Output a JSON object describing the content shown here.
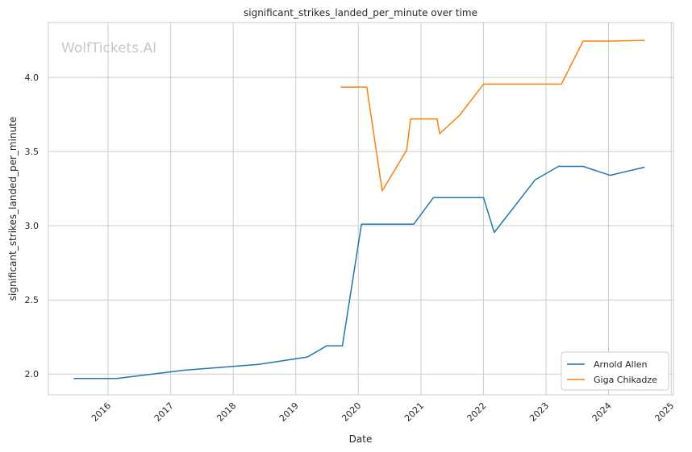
{
  "chart_data": {
    "type": "line",
    "title": "significant_strikes_landed_per_minute over time",
    "xlabel": "Date",
    "ylabel": "significant_strikes_landed_per_minute",
    "watermark": "WolfTickets.AI",
    "x_ticks": [
      "2016",
      "2017",
      "2018",
      "2019",
      "2020",
      "2021",
      "2022",
      "2023",
      "2024",
      "2025"
    ],
    "y_ticks": [
      "2.0",
      "2.5",
      "3.0",
      "3.5",
      "4.0"
    ],
    "xlim": [
      "2015-01-18",
      "2025-01-14"
    ],
    "ylim": [
      1.86,
      4.37
    ],
    "grid": true,
    "legend_position": "lower-right",
    "series": [
      {
        "name": "Arnold Allen",
        "color": "#1f77b4",
        "points": [
          {
            "x": "2015-06-15",
            "y": 1.97
          },
          {
            "x": "2016-02-20",
            "y": 1.97
          },
          {
            "x": "2017-03-15",
            "y": 2.025
          },
          {
            "x": "2018-05-30",
            "y": 2.065
          },
          {
            "x": "2019-03-10",
            "y": 2.115
          },
          {
            "x": "2019-06-30",
            "y": 2.19
          },
          {
            "x": "2019-09-30",
            "y": 2.19
          },
          {
            "x": "2020-01-20",
            "y": 3.01
          },
          {
            "x": "2020-11-20",
            "y": 3.01
          },
          {
            "x": "2021-03-15",
            "y": 3.19
          },
          {
            "x": "2022-01-01",
            "y": 3.19
          },
          {
            "x": "2022-03-05",
            "y": 2.955
          },
          {
            "x": "2022-10-30",
            "y": 3.31
          },
          {
            "x": "2023-03-15",
            "y": 3.4
          },
          {
            "x": "2023-08-05",
            "y": 3.4
          },
          {
            "x": "2024-01-10",
            "y": 3.34
          },
          {
            "x": "2024-07-30",
            "y": 3.395
          }
        ]
      },
      {
        "name": "Giga Chikadze",
        "color": "#ff7f0e",
        "points": [
          {
            "x": "2019-09-20",
            "y": 3.935
          },
          {
            "x": "2020-02-20",
            "y": 3.935
          },
          {
            "x": "2020-05-20",
            "y": 3.235
          },
          {
            "x": "2020-10-10",
            "y": 3.51
          },
          {
            "x": "2020-11-01",
            "y": 3.72
          },
          {
            "x": "2021-04-05",
            "y": 3.72
          },
          {
            "x": "2021-04-20",
            "y": 3.62
          },
          {
            "x": "2021-08-15",
            "y": 3.745
          },
          {
            "x": "2022-01-01",
            "y": 3.955
          },
          {
            "x": "2023-04-01",
            "y": 3.955
          },
          {
            "x": "2023-08-05",
            "y": 4.245
          },
          {
            "x": "2024-01-10",
            "y": 4.245
          },
          {
            "x": "2024-07-30",
            "y": 4.25
          }
        ]
      }
    ]
  }
}
